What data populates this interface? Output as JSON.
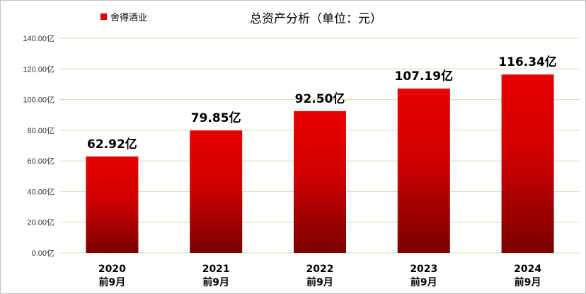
{
  "chart_data": {
    "type": "bar",
    "title": "总资产分析（单位：元）",
    "legend": {
      "position": "top-left",
      "label": "舍得酒业"
    },
    "categories": [
      {
        "year": "2020",
        "period": "前9月"
      },
      {
        "year": "2021",
        "period": "前9月"
      },
      {
        "year": "2022",
        "period": "前9月"
      },
      {
        "year": "2023",
        "period": "前9月"
      },
      {
        "year": "2024",
        "period": "前9月"
      }
    ],
    "series": [
      {
        "name": "舍得酒业",
        "values": [
          62.92,
          79.85,
          92.5,
          107.19,
          116.34
        ],
        "value_labels": [
          "62.92亿",
          "79.85亿",
          "92.50亿",
          "107.19亿",
          "116.34亿"
        ]
      }
    ],
    "ylim": [
      0,
      140
    ],
    "yticks": [
      {
        "value": 0,
        "label": "0.00亿"
      },
      {
        "value": 20,
        "label": "20.00亿"
      },
      {
        "value": 40,
        "label": "40.00亿"
      },
      {
        "value": 60,
        "label": "60.00亿"
      },
      {
        "value": 80,
        "label": "80.00亿"
      },
      {
        "value": 100,
        "label": "100.00亿"
      },
      {
        "value": 120,
        "label": "120.00亿"
      },
      {
        "value": 140,
        "label": "140.00亿"
      }
    ],
    "grid": true,
    "colors": {
      "bar_top": "#e80000",
      "bar_bottom": "#7a0000",
      "grid": "#c6e0b4"
    }
  }
}
